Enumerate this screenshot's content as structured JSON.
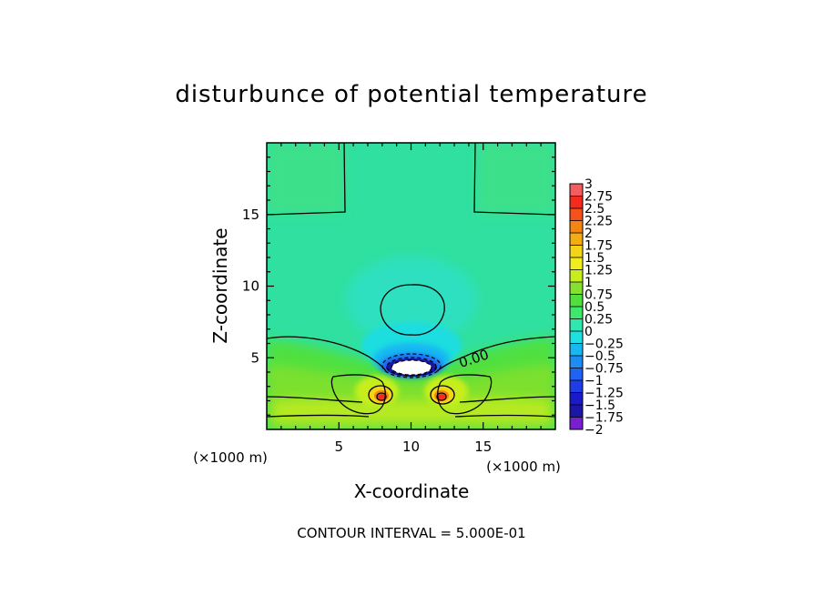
{
  "chart_data": {
    "type": "heatmap",
    "title": "disturbunce of potential temperature",
    "xlabel": "X-coordinate",
    "ylabel": "Z-coordinate",
    "x_unit": "(×1000 m)",
    "y_unit": "(×1000 m)",
    "xlim": [
      0,
      20
    ],
    "ylim": [
      0,
      20
    ],
    "x_ticks": [
      5,
      10,
      15
    ],
    "y_ticks": [
      5,
      10,
      15
    ],
    "contour_label": "0.00",
    "footer": "CONTOUR INTERVAL = 5.000E-01",
    "colorbar": {
      "levels": [
        "-2",
        "-1.75",
        "-1.5",
        "-1.25",
        "-1",
        "-0.75",
        "-0.5",
        "-0.25",
        "0",
        "0.25",
        "0.5",
        "0.75",
        "1",
        "1.25",
        "1.5",
        "1.75",
        "2",
        "2.25",
        "2.5",
        "2.75",
        "3"
      ],
      "colors": [
        "#7a1fd0",
        "#1c15a6",
        "#1a1ac8",
        "#1f3ce6",
        "#1f63f2",
        "#1f8cf5",
        "#17b8f2",
        "#1ee0e0",
        "#2fe8b0",
        "#3ee86a",
        "#4fe040",
        "#86e030",
        "#c7ee1c",
        "#eeee1e",
        "#f3d419",
        "#f5ac12",
        "#f38512",
        "#f4521a",
        "#f52a1f",
        "#f25e5e",
        "#f59d9d"
      ]
    },
    "features": [
      {
        "name": "cold core",
        "x": 10,
        "z": 4.6,
        "min": -2.0
      },
      {
        "name": "warm core left",
        "x": 7.9,
        "z": 2.3,
        "max": 2.5
      },
      {
        "name": "warm core right",
        "x": 12.1,
        "z": 2.3,
        "max": 2.5
      }
    ]
  }
}
